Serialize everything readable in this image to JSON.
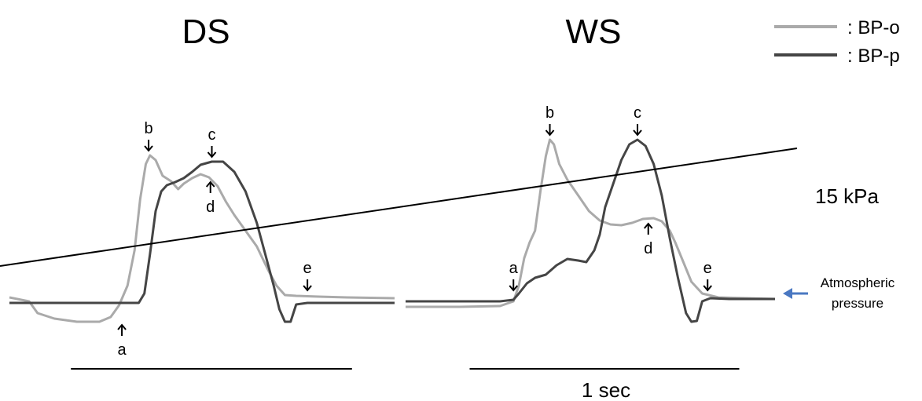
{
  "chart_data": [
    {
      "type": "line",
      "title": "DS",
      "xlim": [
        0,
        1.37
      ],
      "ylim": [
        -5,
        28
      ],
      "series": [
        {
          "name": "BP-o",
          "color": "#aaaaaa",
          "points": [
            [
              0.0,
              0.5
            ],
            [
              0.07,
              0.0
            ],
            [
              0.1,
              -1.5
            ],
            [
              0.16,
              -2.2
            ],
            [
              0.24,
              -2.6
            ],
            [
              0.32,
              -2.6
            ],
            [
              0.36,
              -2.0
            ],
            [
              0.39,
              -0.5
            ],
            [
              0.42,
              2.0
            ],
            [
              0.445,
              6.5
            ],
            [
              0.465,
              13.0
            ],
            [
              0.485,
              17.5
            ],
            [
              0.5,
              18.6
            ],
            [
              0.52,
              18.0
            ],
            [
              0.545,
              16.0
            ],
            [
              0.575,
              15.3
            ],
            [
              0.6,
              14.3
            ],
            [
              0.62,
              15.0
            ],
            [
              0.65,
              15.7
            ],
            [
              0.68,
              16.2
            ],
            [
              0.71,
              15.8
            ],
            [
              0.74,
              14.7
            ],
            [
              0.77,
              12.7
            ],
            [
              0.8,
              11.0
            ],
            [
              0.84,
              9.0
            ],
            [
              0.88,
              7.0
            ],
            [
              0.92,
              4.0
            ],
            [
              0.95,
              2.0
            ],
            [
              0.98,
              0.8
            ],
            [
              1.02,
              0.7
            ],
            [
              1.1,
              0.6
            ],
            [
              1.2,
              0.5
            ],
            [
              1.37,
              0.4
            ]
          ]
        },
        {
          "name": "BP-p",
          "color": "#454545",
          "points": [
            [
              0.0,
              -0.2
            ],
            [
              0.3,
              -0.2
            ],
            [
              0.46,
              -0.2
            ],
            [
              0.48,
              1.0
            ],
            [
              0.5,
              6.0
            ],
            [
              0.52,
              11.5
            ],
            [
              0.54,
              14.0
            ],
            [
              0.56,
              14.8
            ],
            [
              0.59,
              15.2
            ],
            [
              0.62,
              15.7
            ],
            [
              0.65,
              16.5
            ],
            [
              0.68,
              17.4
            ],
            [
              0.72,
              17.8
            ],
            [
              0.76,
              17.8
            ],
            [
              0.8,
              16.5
            ],
            [
              0.84,
              14.0
            ],
            [
              0.88,
              10.0
            ],
            [
              0.91,
              6.0
            ],
            [
              0.94,
              2.0
            ],
            [
              0.96,
              -1.0
            ],
            [
              0.98,
              -2.6
            ],
            [
              1.0,
              -2.6
            ],
            [
              1.02,
              -0.4
            ],
            [
              1.06,
              -0.2
            ],
            [
              1.37,
              -0.2
            ]
          ]
        }
      ],
      "annotations": [
        {
          "label": "b",
          "x": 0.495,
          "y": 18.6,
          "arrow": "down"
        },
        {
          "label": "c",
          "x": 0.72,
          "y": 17.8,
          "arrow": "down"
        },
        {
          "label": "d",
          "x": 0.715,
          "y": 15.8,
          "arrow": "up"
        },
        {
          "label": "e",
          "x": 1.06,
          "y": 0.8,
          "arrow": "down"
        },
        {
          "label": "a",
          "x": 0.4,
          "y": -2.4,
          "arrow": "up"
        }
      ]
    },
    {
      "type": "line",
      "title": "WS",
      "xlim": [
        0,
        1.37
      ],
      "ylim": [
        -5,
        28
      ],
      "series": [
        {
          "name": "BP-o",
          "color": "#aaaaaa",
          "points": [
            [
              0.0,
              -0.7
            ],
            [
              0.2,
              -0.7
            ],
            [
              0.35,
              -0.6
            ],
            [
              0.4,
              0.0
            ],
            [
              0.42,
              2.0
            ],
            [
              0.44,
              5.5
            ],
            [
              0.46,
              7.5
            ],
            [
              0.48,
              9.0
            ],
            [
              0.5,
              14.0
            ],
            [
              0.52,
              18.5
            ],
            [
              0.535,
              20.6
            ],
            [
              0.55,
              20.0
            ],
            [
              0.57,
              17.5
            ],
            [
              0.6,
              15.5
            ],
            [
              0.64,
              13.5
            ],
            [
              0.68,
              11.5
            ],
            [
              0.72,
              10.3
            ],
            [
              0.76,
              9.8
            ],
            [
              0.8,
              9.7
            ],
            [
              0.84,
              10.0
            ],
            [
              0.88,
              10.5
            ],
            [
              0.92,
              10.6
            ],
            [
              0.95,
              10.2
            ],
            [
              0.98,
              9.0
            ],
            [
              1.0,
              7.5
            ],
            [
              1.03,
              5.0
            ],
            [
              1.06,
              2.5
            ],
            [
              1.1,
              1.0
            ],
            [
              1.16,
              0.5
            ],
            [
              1.37,
              0.3
            ]
          ]
        },
        {
          "name": "BP-p",
          "color": "#454545",
          "points": [
            [
              0.0,
              0.0
            ],
            [
              0.35,
              0.0
            ],
            [
              0.4,
              0.2
            ],
            [
              0.42,
              1.0
            ],
            [
              0.45,
              2.3
            ],
            [
              0.48,
              3.0
            ],
            [
              0.52,
              3.4
            ],
            [
              0.56,
              4.6
            ],
            [
              0.6,
              5.4
            ],
            [
              0.64,
              5.2
            ],
            [
              0.67,
              5.0
            ],
            [
              0.7,
              6.5
            ],
            [
              0.72,
              8.5
            ],
            [
              0.74,
              12.0
            ],
            [
              0.77,
              15.0
            ],
            [
              0.8,
              18.0
            ],
            [
              0.83,
              20.0
            ],
            [
              0.86,
              20.6
            ],
            [
              0.89,
              19.8
            ],
            [
              0.92,
              17.5
            ],
            [
              0.95,
              13.5
            ],
            [
              0.98,
              8.0
            ],
            [
              1.01,
              3.0
            ],
            [
              1.04,
              -1.5
            ],
            [
              1.06,
              -2.6
            ],
            [
              1.08,
              -2.5
            ],
            [
              1.1,
              0.0
            ],
            [
              1.13,
              0.4
            ],
            [
              1.2,
              0.3
            ],
            [
              1.37,
              0.3
            ]
          ]
        }
      ],
      "annotations": [
        {
          "label": "b",
          "x": 0.535,
          "y": 20.6,
          "arrow": "down"
        },
        {
          "label": "c",
          "x": 0.86,
          "y": 20.6,
          "arrow": "down"
        },
        {
          "label": "d",
          "x": 0.9,
          "y": 10.5,
          "arrow": "up"
        },
        {
          "label": "e",
          "x": 1.12,
          "y": 0.8,
          "arrow": "down"
        },
        {
          "label": "a",
          "x": 0.4,
          "y": 0.8,
          "arrow": "down"
        }
      ]
    }
  ],
  "legend": {
    "entries": [
      {
        "label": ": BP-o",
        "color": "#aaaaaa"
      },
      {
        "label": ": BP-p",
        "color": "#454545"
      }
    ]
  },
  "scale_bars": {
    "pressure_label": "15 kPa",
    "pressure_value": 15,
    "time_label": "1 sec",
    "time_value": 1
  },
  "atmospheric": {
    "line1": "Atmospheric",
    "line2": "pressure",
    "arrow_color": "#4a78c2"
  }
}
